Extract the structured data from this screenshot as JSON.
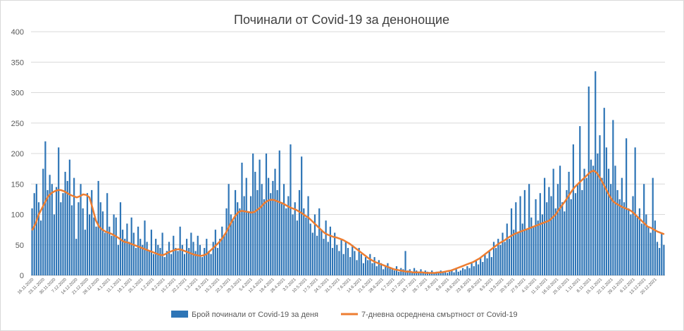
{
  "chart_data": {
    "type": "bar",
    "title": "Починали от Covid-19 за денонощие",
    "ylim": [
      0,
      400
    ],
    "yticks": [
      0,
      50,
      100,
      150,
      200,
      250,
      300,
      350,
      400
    ],
    "grid": true,
    "legend_position": "bottom",
    "xticks": [
      "16.11.2020",
      "23.11.2020",
      "30.11.2020",
      "7.12.2020",
      "14.12.2020",
      "21.12.2020",
      "28.12.2020",
      "4.1.2021",
      "11.1.2021",
      "18.1.2021",
      "25.1.2021",
      "1.2.2021",
      "8.2.2021",
      "15.2.2021",
      "22.2.2021",
      "1.3.2021",
      "8.3.2021",
      "15.3.2021",
      "22.3.2021",
      "29.3.2021",
      "5.4.2021",
      "12.4.2021",
      "19.4.2021",
      "26.4.2021",
      "3.5.2021",
      "10.5.2021",
      "17.5.2021",
      "24.5.2021",
      "31.5.2021",
      "7.6.2021",
      "14.6.2021",
      "21.6.2021",
      "28.6.2021",
      "5.7.2021",
      "12.7.2021",
      "19.7.2021",
      "26.7.2021",
      "2.8.2021",
      "9.8.2021",
      "16.8.2021",
      "23.8.2021",
      "30.8.2021",
      "6.9.2021",
      "13.9.2021",
      "20.9.2021",
      "27.9.2021",
      "4.10.2021",
      "11.10.2021",
      "18.10.2021",
      "25.10.2021",
      "1.11.2021",
      "8.11.2021",
      "15.11.2021",
      "22.11.2021",
      "29.11.2021",
      "6.12.2021",
      "13.12.2021",
      "20.12.2021"
    ],
    "series": [
      {
        "name": "Брой починали от Covid-19 за деня",
        "kind": "bar",
        "color": "#2e75b6",
        "values": [
          110,
          135,
          150,
          120,
          90,
          175,
          220,
          140,
          165,
          150,
          100,
          145,
          210,
          120,
          135,
          170,
          155,
          190,
          115,
          160,
          60,
          120,
          150,
          110,
          75,
          135,
          100,
          140,
          95,
          80,
          155,
          120,
          105,
          70,
          135,
          80,
          65,
          100,
          95,
          50,
          120,
          75,
          60,
          85,
          55,
          95,
          70,
          45,
          80,
          60,
          50,
          90,
          55,
          40,
          75,
          35,
          60,
          50,
          45,
          70,
          30,
          40,
          55,
          35,
          65,
          45,
          40,
          80,
          50,
          35,
          60,
          45,
          70,
          55,
          40,
          65,
          50,
          30,
          45,
          60,
          40,
          35,
          55,
          75,
          45,
          60,
          80,
          65,
          110,
          150,
          100,
          90,
          140,
          120,
          110,
          185,
          130,
          160,
          105,
          130,
          200,
          170,
          140,
          190,
          150,
          125,
          200,
          160,
          135,
          155,
          175,
          140,
          205,
          120,
          150,
          110,
          130,
          215,
          100,
          120,
          90,
          140,
          195,
          110,
          95,
          130,
          85,
          70,
          100,
          65,
          110,
          75,
          60,
          90,
          55,
          80,
          45,
          70,
          50,
          40,
          60,
          35,
          55,
          45,
          30,
          50,
          40,
          25,
          45,
          35,
          20,
          30,
          25,
          35,
          20,
          30,
          15,
          25,
          20,
          10,
          15,
          20,
          12,
          10,
          8,
          15,
          6,
          12,
          10,
          40,
          8,
          10,
          5,
          12,
          8,
          6,
          10,
          5,
          8,
          6,
          4,
          8,
          5,
          6,
          5,
          8,
          6,
          5,
          4,
          6,
          8,
          5,
          10,
          6,
          8,
          12,
          10,
          15,
          12,
          20,
          15,
          25,
          18,
          30,
          22,
          35,
          28,
          40,
          30,
          55,
          45,
          60,
          50,
          70,
          55,
          85,
          60,
          110,
          75,
          120,
          70,
          130,
          85,
          140,
          75,
          150,
          95,
          80,
          125,
          90,
          135,
          100,
          160,
          120,
          145,
          130,
          175,
          110,
          150,
          180,
          120,
          105,
          140,
          170,
          125,
          215,
          135,
          150,
          245,
          140,
          175,
          160,
          310,
          190,
          180,
          335,
          200,
          230,
          160,
          275,
          210,
          175,
          150,
          255,
          180,
          140,
          125,
          160,
          120,
          225,
          110,
          100,
          130,
          210,
          95,
          110,
          85,
          150,
          100,
          80,
          70,
          160,
          90,
          55,
          45,
          70,
          50
        ]
      },
      {
        "name": "7-дневна осреднена смъртност от Covid-19",
        "kind": "line",
        "color": "#ed7d31",
        "values": [
          75,
          85,
          100,
          110,
          120,
          130,
          135,
          138,
          140,
          140,
          138,
          135,
          132,
          130,
          128,
          130,
          133,
          132,
          128,
          110,
          90,
          80,
          75,
          72,
          70,
          68,
          65,
          62,
          58,
          55,
          54,
          52,
          50,
          48,
          46,
          44,
          42,
          40,
          38,
          36,
          34,
          33,
          35,
          38,
          40,
          42,
          43,
          42,
          40,
          38,
          36,
          34,
          33,
          32,
          33,
          35,
          40,
          45,
          50,
          55,
          62,
          70,
          80,
          90,
          98,
          104,
          106,
          105,
          104,
          103,
          104,
          108,
          112,
          118,
          122,
          124,
          124,
          122,
          120,
          118,
          115,
          112,
          110,
          108,
          105,
          102,
          98,
          95,
          90,
          85,
          80,
          75,
          70,
          67,
          65,
          63,
          62,
          60,
          58,
          55,
          52,
          48,
          44,
          40,
          36,
          32,
          28,
          25,
          22,
          20,
          18,
          16,
          14,
          12,
          10,
          9,
          8,
          7,
          6,
          6,
          5,
          5,
          5,
          5,
          4,
          4,
          4,
          4,
          5,
          5,
          6,
          7,
          8,
          10,
          12,
          14,
          16,
          18,
          20,
          22,
          25,
          28,
          32,
          36,
          40,
          44,
          48,
          52,
          55,
          58,
          62,
          65,
          68,
          70,
          72,
          74,
          76,
          78,
          80,
          82,
          84,
          86,
          88,
          90,
          95,
          100,
          108,
          115,
          122,
          130,
          138,
          145,
          150,
          155,
          160,
          165,
          170,
          172,
          168,
          160,
          150,
          140,
          130,
          122,
          118,
          115,
          112,
          110,
          108,
          105,
          100,
          95,
          90,
          85,
          80,
          78,
          75,
          72,
          70,
          68
        ]
      }
    ]
  }
}
